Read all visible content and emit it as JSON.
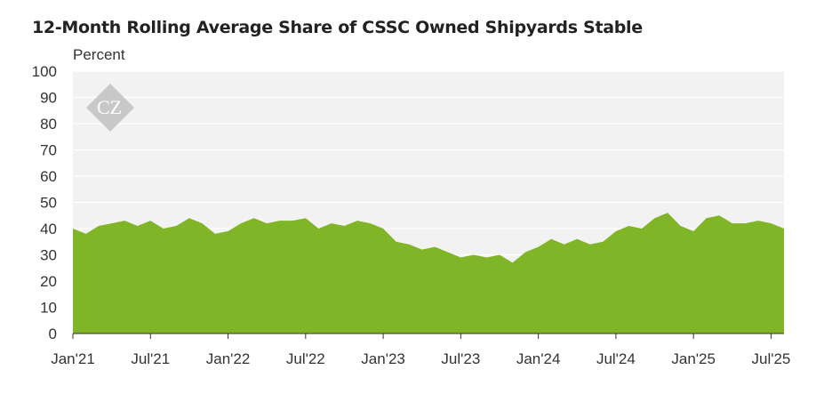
{
  "chart_data": {
    "type": "area",
    "title": "12-Month Rolling Average Share of CSSC Owned Shipyards Stable",
    "ylabel": "Percent",
    "xlabel": "",
    "ylim": [
      0,
      100
    ],
    "yticks": [
      0,
      10,
      20,
      30,
      40,
      50,
      60,
      70,
      80,
      90,
      100
    ],
    "xticks": [
      "Jan'21",
      "Jul'21",
      "Jan'22",
      "Jul'22",
      "Jan'23",
      "Jul'23",
      "Jan'24",
      "Jul'24",
      "Jan'25",
      "Jul'25"
    ],
    "xtick_index": [
      0,
      6,
      12,
      18,
      24,
      30,
      36,
      42,
      48,
      54
    ],
    "grid": true,
    "legend": "none",
    "colors": {
      "area": "#7fb527",
      "plot_background": "#f2f2f2",
      "grid": "#ffffff",
      "logo": "#c8c8c8"
    },
    "logo_text": "CZ",
    "x": [
      "2021-01",
      "2021-02",
      "2021-03",
      "2021-04",
      "2021-05",
      "2021-06",
      "2021-07",
      "2021-08",
      "2021-09",
      "2021-10",
      "2021-11",
      "2021-12",
      "2022-01",
      "2022-02",
      "2022-03",
      "2022-04",
      "2022-05",
      "2022-06",
      "2022-07",
      "2022-08",
      "2022-09",
      "2022-10",
      "2022-11",
      "2022-12",
      "2023-01",
      "2023-02",
      "2023-03",
      "2023-04",
      "2023-05",
      "2023-06",
      "2023-07",
      "2023-08",
      "2023-09",
      "2023-10",
      "2023-11",
      "2023-12",
      "2024-01",
      "2024-02",
      "2024-03",
      "2024-04",
      "2024-05",
      "2024-06",
      "2024-07",
      "2024-08",
      "2024-09",
      "2024-10",
      "2024-11",
      "2024-12",
      "2025-01",
      "2025-02",
      "2025-03",
      "2025-04",
      "2025-05",
      "2025-06",
      "2025-07",
      "2025-08"
    ],
    "values": [
      40,
      38,
      41,
      42,
      43,
      41,
      43,
      40,
      41,
      44,
      42,
      38,
      39,
      42,
      44,
      42,
      43,
      43,
      44,
      40,
      42,
      41,
      43,
      42,
      40,
      35,
      34,
      32,
      33,
      31,
      29,
      30,
      29,
      30,
      27,
      31,
      33,
      36,
      34,
      36,
      34,
      35,
      39,
      41,
      40,
      44,
      46,
      41,
      39,
      44,
      45,
      42,
      42,
      43,
      42,
      40
    ]
  }
}
